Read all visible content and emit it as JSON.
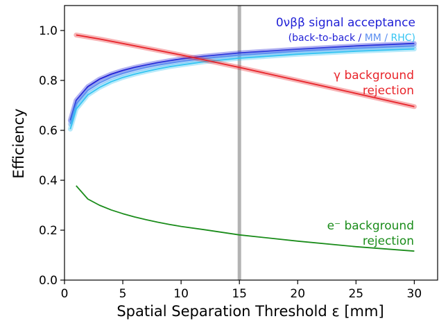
{
  "chart_data": {
    "type": "line",
    "xlabel": "Spatial Separation Threshold ε [mm]",
    "ylabel": "Efficiency",
    "xlim": [
      0,
      32
    ],
    "ylim": [
      0,
      1.1
    ],
    "xticks": [
      0,
      5,
      10,
      15,
      20,
      25,
      30
    ],
    "yticks": [
      0.0,
      0.2,
      0.4,
      0.6,
      0.8,
      1.0
    ],
    "vline": {
      "x": 15,
      "color": "#b3b3b3"
    },
    "grid": false,
    "series": [
      {
        "key": "signal-back-to-back",
        "color": "#1f1fd6",
        "band": true,
        "x": [
          0.5,
          1,
          2,
          3,
          4,
          5,
          6,
          7,
          8,
          9,
          10,
          12,
          15,
          20,
          25,
          30
        ],
        "y": [
          0.64,
          0.72,
          0.775,
          0.805,
          0.825,
          0.84,
          0.852,
          0.862,
          0.871,
          0.879,
          0.886,
          0.897,
          0.91,
          0.925,
          0.938,
          0.948
        ]
      },
      {
        "key": "signal-mm",
        "color": "#5a8ef0",
        "band": true,
        "x": [
          0.5,
          1,
          2,
          3,
          4,
          5,
          6,
          7,
          8,
          9,
          10,
          12,
          15,
          20,
          25,
          30
        ],
        "y": [
          0.625,
          0.705,
          0.76,
          0.79,
          0.812,
          0.828,
          0.841,
          0.852,
          0.861,
          0.869,
          0.876,
          0.888,
          0.901,
          0.917,
          0.929,
          0.938
        ]
      },
      {
        "key": "signal-rhc",
        "color": "#33c4f2",
        "band": true,
        "x": [
          0.5,
          1,
          2,
          3,
          4,
          5,
          6,
          7,
          8,
          9,
          10,
          12,
          15,
          20,
          25,
          30
        ],
        "y": [
          0.605,
          0.685,
          0.742,
          0.772,
          0.795,
          0.812,
          0.825,
          0.836,
          0.846,
          0.855,
          0.862,
          0.875,
          0.889,
          0.905,
          0.917,
          0.926
        ]
      },
      {
        "key": "gamma-rejection",
        "color": "#e8242a",
        "band": true,
        "x": [
          1,
          3,
          5,
          10,
          15,
          20,
          25,
          30
        ],
        "y": [
          0.982,
          0.966,
          0.948,
          0.902,
          0.852,
          0.8,
          0.748,
          0.695
        ]
      },
      {
        "key": "electron-rejection",
        "color": "#1a8c1a",
        "band": false,
        "x": [
          1,
          2,
          3,
          4,
          5,
          6,
          7,
          8,
          9,
          10,
          12,
          15,
          20,
          25,
          30
        ],
        "y": [
          0.378,
          0.325,
          0.3,
          0.281,
          0.266,
          0.253,
          0.242,
          0.232,
          0.223,
          0.215,
          0.202,
          0.181,
          0.156,
          0.134,
          0.116
        ]
      }
    ],
    "annotations": {
      "signal_line1": "0νββ signal acceptance",
      "signal_l2_open": "(back-to-back / ",
      "signal_l2_mm": "MM",
      "signal_l2_sep": " / ",
      "signal_l2_rhc": "RHC)",
      "gamma_line1": "γ background",
      "gamma_line2": "rejection",
      "electron_line1": "e⁻ background",
      "electron_line2": "rejection"
    }
  }
}
